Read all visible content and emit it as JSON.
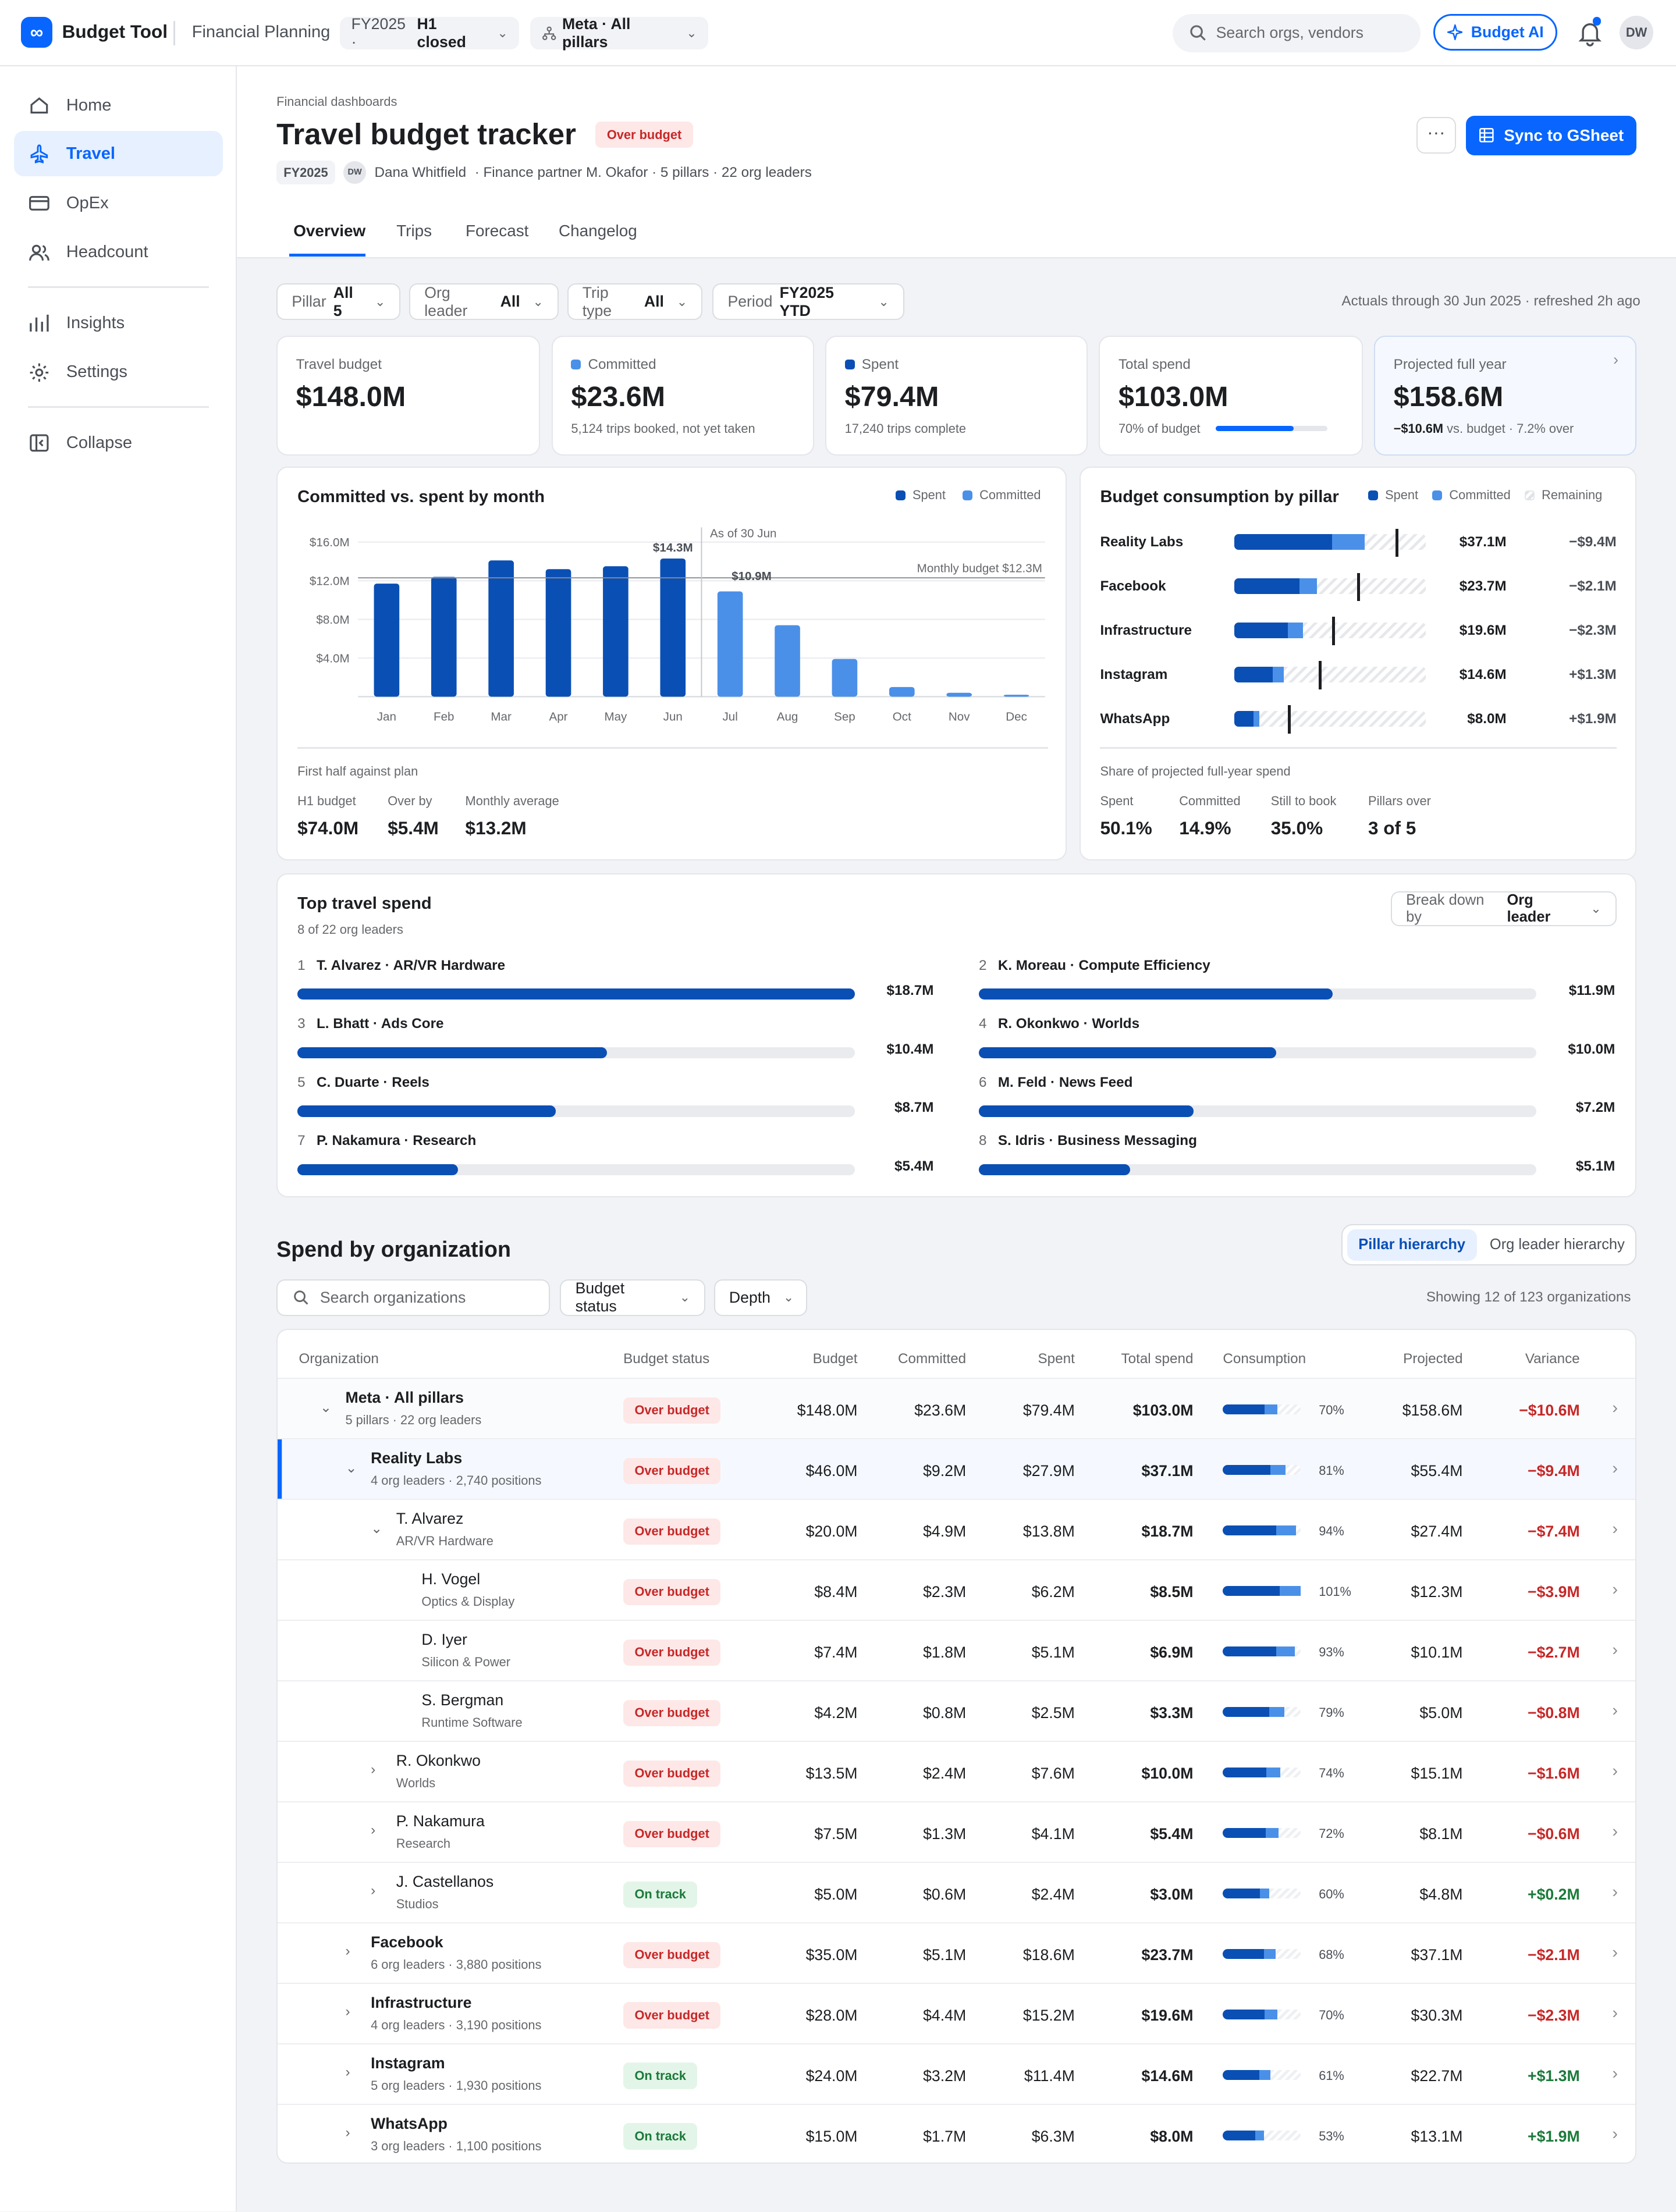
{
  "app": {
    "logo": "∞",
    "name": "Budget Tool",
    "product": "Financial Planning",
    "fy_chip": "FY2025 ·",
    "fy_status": "H1 closed",
    "scope_chip": "Meta · All pillars",
    "search_placeholder": "Search orgs, vendors",
    "ai_label": "Budget AI",
    "avatar": "DW"
  },
  "nav": [
    "Home",
    "Travel",
    "OpEx",
    "Headcount",
    "Insights",
    "Settings",
    "Collapse"
  ],
  "header": {
    "breadcrumb": "Financial dashboards",
    "title": "Travel budget tracker",
    "status": "Over budget",
    "fy": "FY2025",
    "owner_initials": "DW",
    "owner": "Dana Whitfield",
    "details": "· Finance partner M. Okafor · 5 pillars · 22 org leaders",
    "more": "···",
    "sync": "Sync to GSheet"
  },
  "tabs": [
    "Overview",
    "Trips",
    "Forecast",
    "Changelog"
  ],
  "filters": [
    {
      "label": "Pillar",
      "value": "All 5"
    },
    {
      "label": "Org leader",
      "value": "All"
    },
    {
      "label": "Trip type",
      "value": "All"
    },
    {
      "label": "Period",
      "value": "FY2025 YTD"
    }
  ],
  "asof": "Actuals through 30 Jun 2025 · refreshed 2h ago",
  "kpis": [
    {
      "label": "Travel budget",
      "value": "$148.0M",
      "sub": ""
    },
    {
      "label": "Committed",
      "value": "$23.6M",
      "sub": "5,124 trips booked, not yet taken"
    },
    {
      "label": "Spent",
      "value": "$79.4M",
      "sub": "17,240 trips complete"
    },
    {
      "label": "Total spend",
      "value": "$103.0M",
      "sub": "70% of budget",
      "progress": 0.7
    },
    {
      "label": "Projected full year",
      "value": "$158.6M",
      "sub_bold": "−$10.6M",
      "sub": "vs. budget · 7.2% over"
    }
  ],
  "colors": {
    "spent": "#0a4fb4",
    "committed": "#4a90e8",
    "accent": "#0866ff",
    "over": "#c62828",
    "on_track": "#1b7a3a"
  },
  "monthly": {
    "title": "Committed vs. spent by month",
    "legend": [
      "Spent",
      "Committed"
    ],
    "ref_line_label": "Monthly budget $12.3M",
    "asof_label": "As of 30 Jun",
    "peak_label": "$14.3M",
    "jul_label": "$10.9M",
    "footer_title": "First half against plan",
    "stats": [
      {
        "label": "H1 budget",
        "value": "$74.0M"
      },
      {
        "label": "Over by",
        "value": "$5.4M"
      },
      {
        "label": "Monthly average",
        "value": "$13.2M"
      }
    ]
  },
  "chart_data": {
    "type": "bar",
    "title": "Committed vs. spent by month",
    "categories": [
      "Jan",
      "Feb",
      "Mar",
      "Apr",
      "May",
      "Jun",
      "Jul",
      "Aug",
      "Sep",
      "Oct",
      "Nov",
      "Dec"
    ],
    "series": [
      {
        "name": "Spent",
        "values": [
          11.7,
          12.4,
          14.1,
          13.2,
          13.5,
          14.3,
          null,
          null,
          null,
          null,
          null,
          null
        ]
      },
      {
        "name": "Committed",
        "values": [
          null,
          null,
          null,
          null,
          null,
          null,
          10.9,
          7.4,
          3.9,
          1.0,
          0.4,
          0.2
        ]
      }
    ],
    "yticks": [
      "$4.0M",
      "$8.0M",
      "$12.0M",
      "$16.0M"
    ],
    "ylim": [
      0,
      16.5
    ],
    "reference_line": 12.3
  },
  "pillars": {
    "title": "Budget consumption by pillar",
    "legend": [
      "Spent",
      "Committed",
      "Remaining"
    ],
    "rows": [
      {
        "name": "Reality Labs",
        "spent": 0.51,
        "committed": 0.17,
        "marker": 0.84,
        "total": "$37.1M",
        "variance": "−$9.4M"
      },
      {
        "name": "Facebook",
        "spent": 0.34,
        "committed": 0.09,
        "marker": 0.64,
        "total": "$23.7M",
        "variance": "−$2.1M"
      },
      {
        "name": "Infrastructure",
        "spent": 0.28,
        "committed": 0.08,
        "marker": 0.51,
        "total": "$19.6M",
        "variance": "−$2.3M"
      },
      {
        "name": "Instagram",
        "spent": 0.2,
        "committed": 0.06,
        "marker": 0.44,
        "total": "$14.6M",
        "variance": "+$1.3M"
      },
      {
        "name": "WhatsApp",
        "spent": 0.1,
        "committed": 0.03,
        "marker": 0.28,
        "total": "$8.0M",
        "variance": "+$1.9M"
      }
    ],
    "footer_title": "Share of projected full-year spend",
    "stats": [
      {
        "label": "Spent",
        "value": "50.1%"
      },
      {
        "label": "Committed",
        "value": "14.9%"
      },
      {
        "label": "Still to book",
        "value": "35.0%"
      },
      {
        "label": "Pillars over",
        "value": "3 of 5"
      }
    ]
  },
  "top": {
    "title": "Top travel spend",
    "subtitle": "8 of 22 org leaders",
    "breakdown_label": "Break down by",
    "breakdown_value": "Org leader",
    "items": [
      {
        "rank": "1",
        "name": "T. Alvarez · AR/VR Hardware",
        "value": "$18.7M",
        "frac": 1.0
      },
      {
        "rank": "2",
        "name": "K. Moreau · Compute Efficiency",
        "value": "$11.9M",
        "frac": 0.635
      },
      {
        "rank": "3",
        "name": "L. Bhatt · Ads Core",
        "value": "$10.4M",
        "frac": 0.555
      },
      {
        "rank": "4",
        "name": "R. Okonkwo · Worlds",
        "value": "$10.0M",
        "frac": 0.534
      },
      {
        "rank": "5",
        "name": "C. Duarte · Reels",
        "value": "$8.7M",
        "frac": 0.464
      },
      {
        "rank": "6",
        "name": "M. Feld · News Feed",
        "value": "$7.2M",
        "frac": 0.385
      },
      {
        "rank": "7",
        "name": "P. Nakamura · Research",
        "value": "$5.4M",
        "frac": 0.288
      },
      {
        "rank": "8",
        "name": "S. Idris · Business Messaging",
        "value": "$5.1M",
        "frac": 0.272
      }
    ]
  },
  "orgs": {
    "title": "Spend by organization",
    "toggle": [
      "Pillar hierarchy",
      "Org leader hierarchy"
    ],
    "search_placeholder": "Search organizations",
    "filters": [
      "Budget status",
      "Depth"
    ],
    "showing": "Showing 12 of 123 organizations",
    "columns": [
      "Organization",
      "Budget status",
      "Budget",
      "Committed",
      "Spent",
      "Total spend",
      "Consumption",
      "Projected",
      "Variance"
    ],
    "rows": [
      {
        "name": "Meta · All pillars",
        "sub": "5 pillars · 22 org leaders",
        "level": 0,
        "bold": true,
        "exp": "⌄",
        "status": "Over budget",
        "budget": "$148.0M",
        "committed": "$23.6M",
        "spent": "$79.4M",
        "total": "$103.0M",
        "pct": "70%",
        "s": 0.54,
        "c": 0.16,
        "projected": "$158.6M",
        "variance": "−$10.6M"
      },
      {
        "name": "Reality Labs",
        "sub": "4 org leaders · 2,740 positions",
        "level": 1,
        "bold": true,
        "exp": "⌄",
        "status": "Over budget",
        "budget": "$46.0M",
        "committed": "$9.2M",
        "spent": "$27.9M",
        "total": "$37.1M",
        "pct": "81%",
        "s": 0.61,
        "c": 0.2,
        "projected": "$55.4M",
        "variance": "−$9.4M",
        "selected": true
      },
      {
        "name": "T. Alvarez",
        "sub": "AR/VR Hardware",
        "level": 2,
        "bold": false,
        "exp": "⌄",
        "status": "Over budget",
        "budget": "$20.0M",
        "committed": "$4.9M",
        "spent": "$13.8M",
        "total": "$18.7M",
        "pct": "94%",
        "s": 0.69,
        "c": 0.25,
        "projected": "$27.4M",
        "variance": "−$7.4M"
      },
      {
        "name": "H. Vogel",
        "sub": "Optics & Display",
        "level": 3,
        "bold": false,
        "exp": "",
        "status": "Over budget",
        "budget": "$8.4M",
        "committed": "$2.3M",
        "spent": "$6.2M",
        "total": "$8.5M",
        "pct": "101%",
        "s": 0.73,
        "c": 0.27,
        "projected": "$12.3M",
        "variance": "−$3.9M"
      },
      {
        "name": "D. Iyer",
        "sub": "Silicon & Power",
        "level": 3,
        "bold": false,
        "exp": "",
        "status": "Over budget",
        "budget": "$7.4M",
        "committed": "$1.8M",
        "spent": "$5.1M",
        "total": "$6.9M",
        "pct": "93%",
        "s": 0.69,
        "c": 0.24,
        "projected": "$10.1M",
        "variance": "−$2.7M"
      },
      {
        "name": "S. Bergman",
        "sub": "Runtime Software",
        "level": 3,
        "bold": false,
        "exp": "",
        "status": "Over budget",
        "budget": "$4.2M",
        "committed": "$0.8M",
        "spent": "$2.5M",
        "total": "$3.3M",
        "pct": "79%",
        "s": 0.6,
        "c": 0.19,
        "projected": "$5.0M",
        "variance": "−$0.8M"
      },
      {
        "name": "R. Okonkwo",
        "sub": "Worlds",
        "level": 2,
        "bold": false,
        "exp": "›",
        "status": "Over budget",
        "budget": "$13.5M",
        "committed": "$2.4M",
        "spent": "$7.6M",
        "total": "$10.0M",
        "pct": "74%",
        "s": 0.56,
        "c": 0.18,
        "projected": "$15.1M",
        "variance": "−$1.6M"
      },
      {
        "name": "P. Nakamura",
        "sub": "Research",
        "level": 2,
        "bold": false,
        "exp": "›",
        "status": "Over budget",
        "budget": "$7.5M",
        "committed": "$1.3M",
        "spent": "$4.1M",
        "total": "$5.4M",
        "pct": "72%",
        "s": 0.55,
        "c": 0.17,
        "projected": "$8.1M",
        "variance": "−$0.6M"
      },
      {
        "name": "J. Castellanos",
        "sub": "Studios",
        "level": 2,
        "bold": false,
        "exp": "›",
        "status": "On track",
        "budget": "$5.0M",
        "committed": "$0.6M",
        "spent": "$2.4M",
        "total": "$3.0M",
        "pct": "60%",
        "s": 0.48,
        "c": 0.12,
        "projected": "$4.8M",
        "variance": "+$0.2M"
      },
      {
        "name": "Facebook",
        "sub": "6 org leaders · 3,880 positions",
        "level": 1,
        "bold": true,
        "exp": "›",
        "status": "Over budget",
        "budget": "$35.0M",
        "committed": "$5.1M",
        "spent": "$18.6M",
        "total": "$23.7M",
        "pct": "68%",
        "s": 0.53,
        "c": 0.15,
        "projected": "$37.1M",
        "variance": "−$2.1M"
      },
      {
        "name": "Infrastructure",
        "sub": "4 org leaders · 3,190 positions",
        "level": 1,
        "bold": true,
        "exp": "›",
        "status": "Over budget",
        "budget": "$28.0M",
        "committed": "$4.4M",
        "spent": "$15.2M",
        "total": "$19.6M",
        "pct": "70%",
        "s": 0.54,
        "c": 0.16,
        "projected": "$30.3M",
        "variance": "−$2.3M"
      },
      {
        "name": "Instagram",
        "sub": "5 org leaders · 1,930 positions",
        "level": 1,
        "bold": true,
        "exp": "›",
        "status": "On track",
        "budget": "$24.0M",
        "committed": "$3.2M",
        "spent": "$11.4M",
        "total": "$14.6M",
        "pct": "61%",
        "s": 0.47,
        "c": 0.14,
        "projected": "$22.7M",
        "variance": "+$1.3M"
      },
      {
        "name": "WhatsApp",
        "sub": "3 org leaders · 1,100 positions",
        "level": 1,
        "bold": true,
        "exp": "›",
        "status": "On track",
        "budget": "$15.0M",
        "committed": "$1.7M",
        "spent": "$6.3M",
        "total": "$8.0M",
        "pct": "53%",
        "s": 0.42,
        "c": 0.11,
        "projected": "$13.1M",
        "variance": "+$1.9M"
      }
    ]
  }
}
